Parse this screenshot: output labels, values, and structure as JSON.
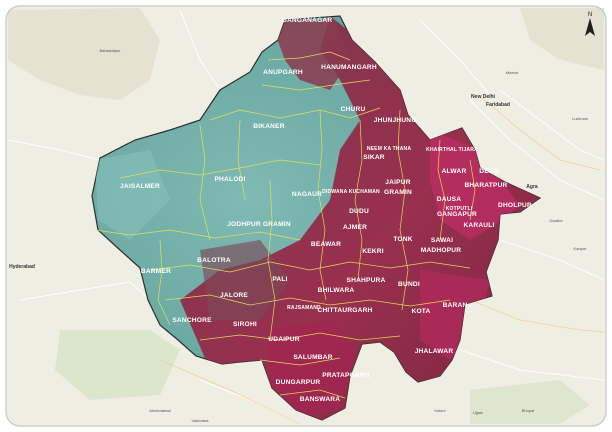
{
  "colors": {
    "basemap": "#efeee3",
    "basemap_green": "#dfe8cf",
    "water": "#b6cde0",
    "roads": "#ffffff",
    "arid_fill": "#6fb0aa",
    "arid_dark": "#4f8f8c",
    "veg_fill": "#8f2745",
    "veg_bright": "#c2306a",
    "boundary": "#e7e25a",
    "label": "#ffffff",
    "border": "#c7c7c7"
  },
  "north_arrow": {
    "label": "N"
  },
  "districts": [
    {
      "name": "GANGANAGAR"
    },
    {
      "name": "HANUMANGARH"
    },
    {
      "name": "ANUPGARH"
    },
    {
      "name": "CHURU"
    },
    {
      "name": "BIKANER"
    },
    {
      "name": "JHUNJHUNU"
    },
    {
      "name": "SIKAR"
    },
    {
      "name": "NEEM KA THANA"
    },
    {
      "name": "KHAIRTHAL TIJARA"
    },
    {
      "name": "ALWAR"
    },
    {
      "name": "DEEG"
    },
    {
      "name": "BHARATPUR"
    },
    {
      "name": "DHOLPUR"
    },
    {
      "name": "JAISALMER"
    },
    {
      "name": "PHALODI"
    },
    {
      "name": "NAGAUR"
    },
    {
      "name": "DIDWANA KUCHAMAN"
    },
    {
      "name": "JAIPUR"
    },
    {
      "name": "GRAMIN"
    },
    {
      "name": "DAUSA"
    },
    {
      "name": "KOTPUTLI"
    },
    {
      "name": "DUDU"
    },
    {
      "name": "GANGAPUR"
    },
    {
      "name": "KARAULI"
    },
    {
      "name": "JODHPUR GRAMIN"
    },
    {
      "name": "AJMER"
    },
    {
      "name": "BEAWAR"
    },
    {
      "name": "TONK"
    },
    {
      "name": "SAWAI"
    },
    {
      "name": "MADHOPUR"
    },
    {
      "name": "KEKRI"
    },
    {
      "name": "BARMER"
    },
    {
      "name": "BALOTRA"
    },
    {
      "name": "PALI"
    },
    {
      "name": "SHAHPURA"
    },
    {
      "name": "BUNDI"
    },
    {
      "name": "JALORE"
    },
    {
      "name": "BHILWARA"
    },
    {
      "name": "SANCHORE"
    },
    {
      "name": "SIROHI"
    },
    {
      "name": "RAJSAMAND"
    },
    {
      "name": "CHITTAURGARH"
    },
    {
      "name": "KOTA"
    },
    {
      "name": "BARAN"
    },
    {
      "name": "UDAIPUR"
    },
    {
      "name": "JHALAWAR"
    },
    {
      "name": "SALUMBAR"
    },
    {
      "name": "PRATAPGARH"
    },
    {
      "name": "DUNGARPUR"
    },
    {
      "name": "BANSWARA"
    }
  ],
  "basemap_labels": [
    {
      "name": "Faridabad"
    },
    {
      "name": "New Delhi"
    },
    {
      "name": "Meerut"
    },
    {
      "name": "Agra"
    },
    {
      "name": "Bahawalpur"
    },
    {
      "name": "Hyderabad"
    },
    {
      "name": "Bhopal"
    },
    {
      "name": "Ujjain"
    },
    {
      "name": "Indore"
    },
    {
      "name": "Kanpur"
    },
    {
      "name": "Lucknow"
    },
    {
      "name": "Ahmedabad"
    },
    {
      "name": "Vadodara"
    },
    {
      "name": "Gwalior"
    }
  ]
}
